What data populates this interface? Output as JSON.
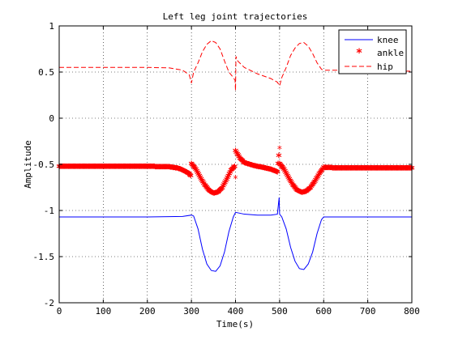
{
  "chart_data": {
    "type": "line",
    "title": "Left leg joint trajectories",
    "xlabel": "Time(s)",
    "ylabel": "Amplitude",
    "xlim": [
      0,
      800
    ],
    "ylim": [
      -2,
      1
    ],
    "xticks": [
      "0",
      "100",
      "200",
      "300",
      "400",
      "500",
      "600",
      "700",
      "800"
    ],
    "yticks": [
      "-2",
      "-1.5",
      "-1",
      "-0.5",
      "0",
      "0.5",
      "1"
    ],
    "grid": true,
    "legend_position": "top-right",
    "series": [
      {
        "name": "knee",
        "style": "solid-line",
        "color": "#0000ff",
        "x": [
          0,
          100,
          200,
          280,
          300,
          305,
          315,
          325,
          335,
          345,
          355,
          365,
          375,
          385,
          395,
          400,
          420,
          450,
          480,
          495,
          499,
          500,
          505,
          515,
          525,
          535,
          545,
          555,
          565,
          575,
          585,
          595,
          600,
          650,
          700,
          800
        ],
        "y": [
          -1.07,
          -1.07,
          -1.07,
          -1.065,
          -1.05,
          -1.06,
          -1.2,
          -1.42,
          -1.58,
          -1.65,
          -1.66,
          -1.6,
          -1.45,
          -1.23,
          -1.07,
          -1.02,
          -1.04,
          -1.05,
          -1.05,
          -1.04,
          -0.86,
          -1.04,
          -1.07,
          -1.2,
          -1.4,
          -1.55,
          -1.63,
          -1.64,
          -1.58,
          -1.45,
          -1.25,
          -1.1,
          -1.07,
          -1.07,
          -1.07,
          -1.07
        ]
      },
      {
        "name": "ankle",
        "style": "star-markers",
        "color": "#ff0000",
        "x": [
          0,
          50,
          100,
          150,
          200,
          250,
          270,
          285,
          295,
          300,
          300,
          310,
          320,
          330,
          340,
          350,
          360,
          370,
          380,
          390,
          398,
          400,
          400,
          410,
          420,
          440,
          460,
          480,
          495,
          500,
          500,
          510,
          520,
          530,
          540,
          550,
          560,
          570,
          580,
          590,
          600,
          620,
          650,
          700,
          750,
          800
        ],
        "y": [
          -0.54,
          -0.54,
          -0.54,
          -0.54,
          -0.54,
          -0.545,
          -0.56,
          -0.59,
          -0.62,
          -0.65,
          -0.51,
          -0.57,
          -0.66,
          -0.74,
          -0.8,
          -0.83,
          -0.82,
          -0.77,
          -0.68,
          -0.58,
          -0.54,
          -0.65,
          -0.37,
          -0.45,
          -0.5,
          -0.53,
          -0.55,
          -0.57,
          -0.6,
          -0.33,
          -0.51,
          -0.57,
          -0.66,
          -0.74,
          -0.8,
          -0.82,
          -0.81,
          -0.77,
          -0.7,
          -0.62,
          -0.55,
          -0.555,
          -0.555,
          -0.555,
          -0.555,
          -0.555
        ]
      },
      {
        "name": "hip",
        "style": "dashed-line",
        "color": "#ff0000",
        "x": [
          0,
          100,
          200,
          250,
          280,
          295,
          300,
          305,
          315,
          325,
          335,
          345,
          355,
          365,
          375,
          385,
          395,
          399,
          400,
          401,
          405,
          420,
          450,
          480,
          495,
          500,
          505,
          515,
          525,
          535,
          545,
          555,
          565,
          575,
          585,
          595,
          600,
          650,
          700,
          800
        ],
        "y": [
          0.55,
          0.55,
          0.55,
          0.545,
          0.52,
          0.47,
          0.38,
          0.5,
          0.6,
          0.72,
          0.8,
          0.84,
          0.82,
          0.75,
          0.62,
          0.5,
          0.44,
          0.41,
          0.3,
          0.67,
          0.62,
          0.55,
          0.48,
          0.43,
          0.39,
          0.35,
          0.44,
          0.55,
          0.68,
          0.76,
          0.81,
          0.82,
          0.78,
          0.7,
          0.6,
          0.53,
          0.52,
          0.52,
          0.51,
          0.51
        ]
      }
    ]
  }
}
